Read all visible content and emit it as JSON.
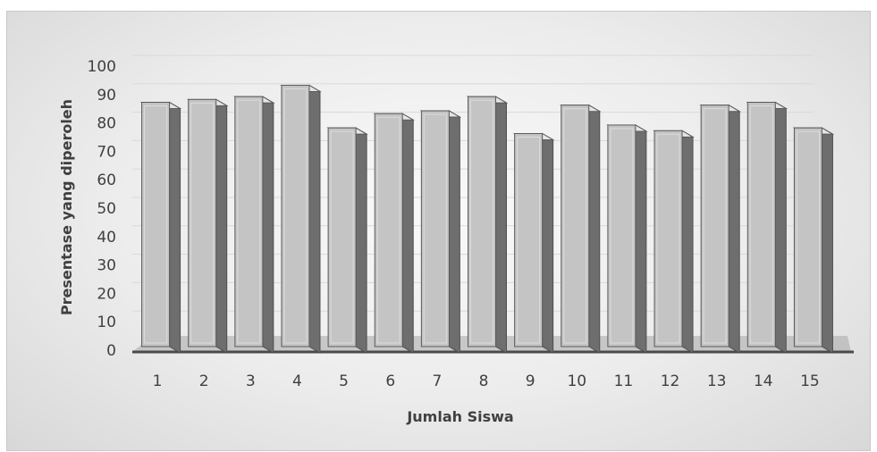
{
  "chart_data": {
    "type": "bar",
    "title": "",
    "xlabel": "Jumlah Siswa",
    "ylabel": "Presentase yang diperoleh",
    "categories": [
      "1",
      "2",
      "3",
      "4",
      "5",
      "6",
      "7",
      "8",
      "9",
      "10",
      "11",
      "12",
      "13",
      "14",
      "15"
    ],
    "values": [
      86,
      87,
      88,
      92,
      77,
      82,
      83,
      88,
      75,
      85,
      78,
      76,
      85,
      86,
      77
    ],
    "ylim": [
      0,
      100
    ],
    "yticks": [
      "0",
      "10",
      "20",
      "30",
      "40",
      "50",
      "60",
      "70",
      "80",
      "90",
      "100"
    ],
    "grid": true,
    "legend": "none",
    "style": "3d-bar",
    "colors": {
      "bar_front": "#c4c4c4",
      "bar_top": "#e6e6e6",
      "bar_side": "#6e6e6e",
      "gridline": "#d9d9d9",
      "floor": "#a8a8a8",
      "axis_line": "#4a4a4a"
    }
  }
}
